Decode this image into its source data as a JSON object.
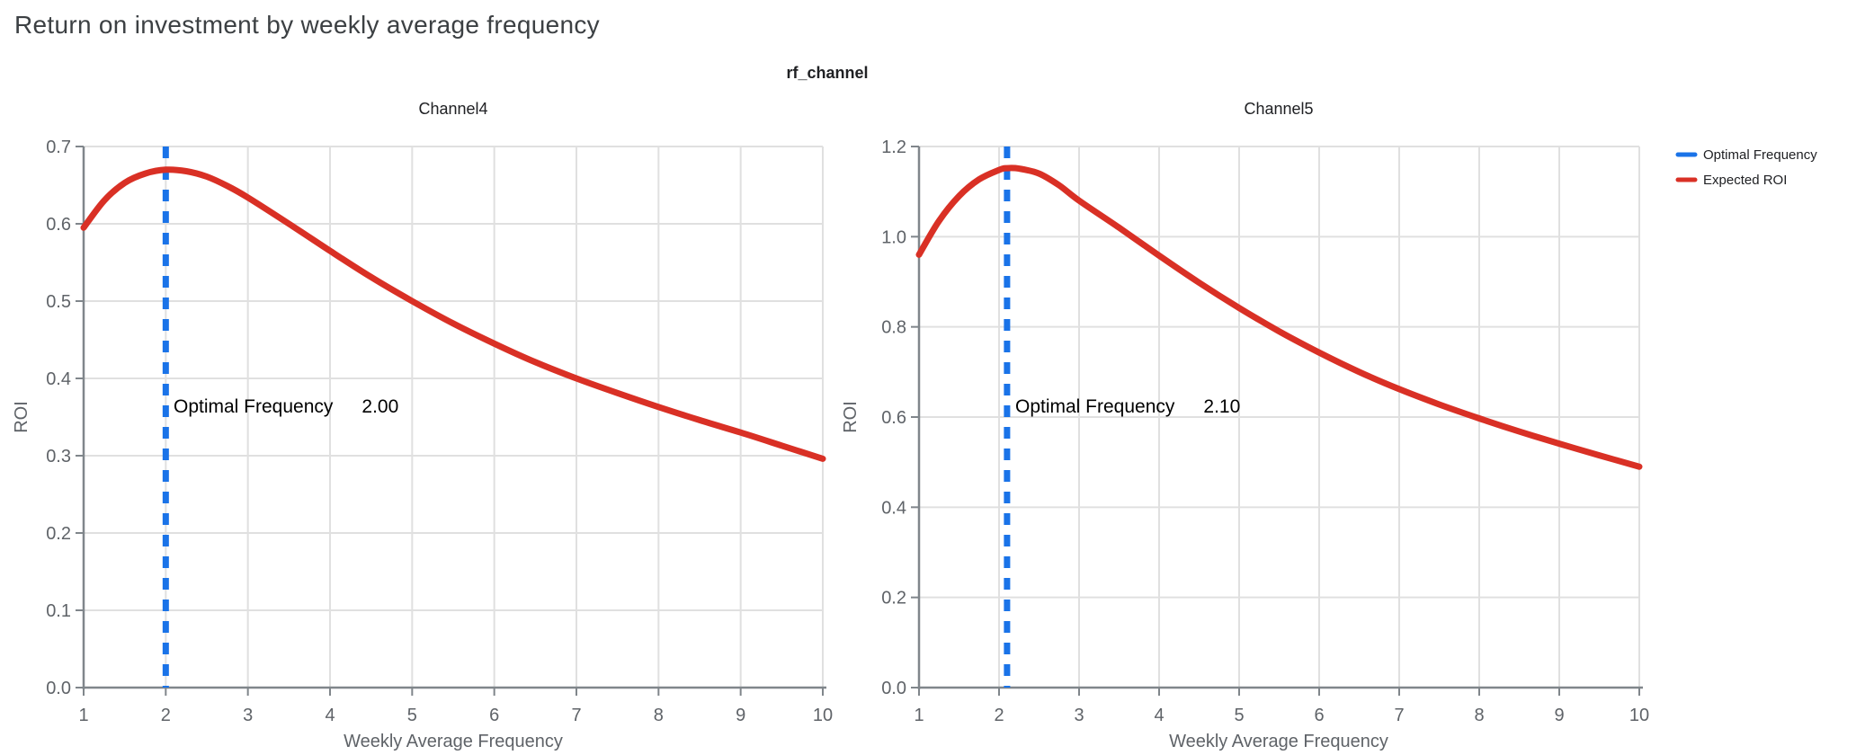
{
  "header": {
    "title": "Return on investment by weekly average frequency"
  },
  "figure": {
    "suptitle": "rf_channel",
    "legend_position": "top-right-outside"
  },
  "legend": {
    "items": [
      {
        "label": "Optimal Frequency",
        "color": "#1a73e8",
        "style": "dashed-line"
      },
      {
        "label": "Expected ROI",
        "color": "#d93025",
        "style": "solid-line"
      }
    ]
  },
  "colors": {
    "optimal_frequency_line": "#1a73e8",
    "expected_roi_line": "#d93025",
    "gridline": "#e0e0e0",
    "axis_line": "#80868b",
    "tick_label": "#5f6368",
    "title_text": "#3c4043",
    "panel_title_text": "#202124",
    "annotation_text": "#000000",
    "background": "#ffffff"
  },
  "chart_data": [
    {
      "type": "line",
      "panel_title": "Channel4",
      "xlabel": "Weekly Average Frequency",
      "ylabel": "ROI",
      "xlim": [
        1,
        10
      ],
      "ylim": [
        0,
        0.7
      ],
      "x_ticks": [
        1,
        2,
        3,
        4,
        5,
        6,
        7,
        8,
        9,
        10
      ],
      "y_ticks": [
        0,
        0.1,
        0.2,
        0.3,
        0.4,
        0.5,
        0.6,
        0.7
      ],
      "grid": true,
      "optimal_frequency": 2.0,
      "annotation_label": "Optimal Frequency",
      "annotation_value": "2.00",
      "series": [
        {
          "name": "Expected ROI",
          "x": [
            1,
            1.25,
            1.5,
            1.75,
            2,
            2.25,
            2.5,
            2.75,
            3,
            3.5,
            4,
            4.5,
            5,
            5.5,
            6,
            6.5,
            7,
            7.5,
            8,
            8.5,
            9,
            9.5,
            10
          ],
          "y": [
            0.595,
            0.63,
            0.653,
            0.665,
            0.67,
            0.668,
            0.661,
            0.649,
            0.634,
            0.6,
            0.565,
            0.531,
            0.5,
            0.471,
            0.445,
            0.421,
            0.4,
            0.381,
            0.363,
            0.346,
            0.33,
            0.313,
            0.296
          ]
        }
      ]
    },
    {
      "type": "line",
      "panel_title": "Channel5",
      "xlabel": "Weekly Average Frequency",
      "ylabel": "ROI",
      "xlim": [
        1,
        10
      ],
      "ylim": [
        0,
        1.2
      ],
      "x_ticks": [
        1,
        2,
        3,
        4,
        5,
        6,
        7,
        8,
        9,
        10
      ],
      "y_ticks": [
        0,
        0.2,
        0.4,
        0.6,
        0.8,
        1.0,
        1.2
      ],
      "grid": true,
      "optimal_frequency": 2.1,
      "annotation_label": "Optimal Frequency",
      "annotation_value": "2.10",
      "series": [
        {
          "name": "Expected ROI",
          "x": [
            1,
            1.25,
            1.5,
            1.75,
            2,
            2.1,
            2.25,
            2.5,
            2.75,
            3,
            3.5,
            4,
            4.5,
            5,
            5.5,
            6,
            6.5,
            7,
            7.5,
            8,
            8.5,
            9,
            9.5,
            10
          ],
          "y": [
            0.96,
            1.035,
            1.09,
            1.127,
            1.148,
            1.152,
            1.151,
            1.14,
            1.114,
            1.08,
            1.02,
            0.958,
            0.898,
            0.842,
            0.79,
            0.743,
            0.7,
            0.662,
            0.628,
            0.597,
            0.568,
            0.541,
            0.515,
            0.49
          ]
        }
      ]
    }
  ]
}
